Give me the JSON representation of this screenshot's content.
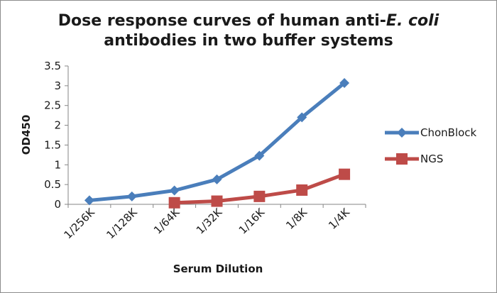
{
  "chart_data": {
    "type": "line",
    "title": {
      "line1_prefix": "Dose response curves of human anti-",
      "line1_italic": "E. coli",
      "line2": "antibodies in two buffer systems"
    },
    "xlabel": "Serum Dilution",
    "ylabel": "OD450",
    "categories": [
      "1/256K",
      "1/128K",
      "1/64K",
      "1/32K",
      "1/16K",
      "1/8K",
      "1/4K"
    ],
    "yticks": [
      "0",
      "0.5",
      "1",
      "1.5",
      "2",
      "2.5",
      "3",
      "3.5"
    ],
    "ylim": [
      0,
      3.5
    ],
    "legend_position": "right",
    "series": [
      {
        "name": "ChonBlock",
        "color": "#4a7ebb",
        "marker": "diamond",
        "values": [
          0.1,
          0.2,
          0.35,
          0.63,
          1.23,
          2.2,
          3.07
        ]
      },
      {
        "name": "NGS",
        "color": "#be4b48",
        "marker": "square",
        "values": [
          null,
          null,
          0.04,
          0.08,
          0.2,
          0.36,
          0.76
        ]
      }
    ]
  }
}
